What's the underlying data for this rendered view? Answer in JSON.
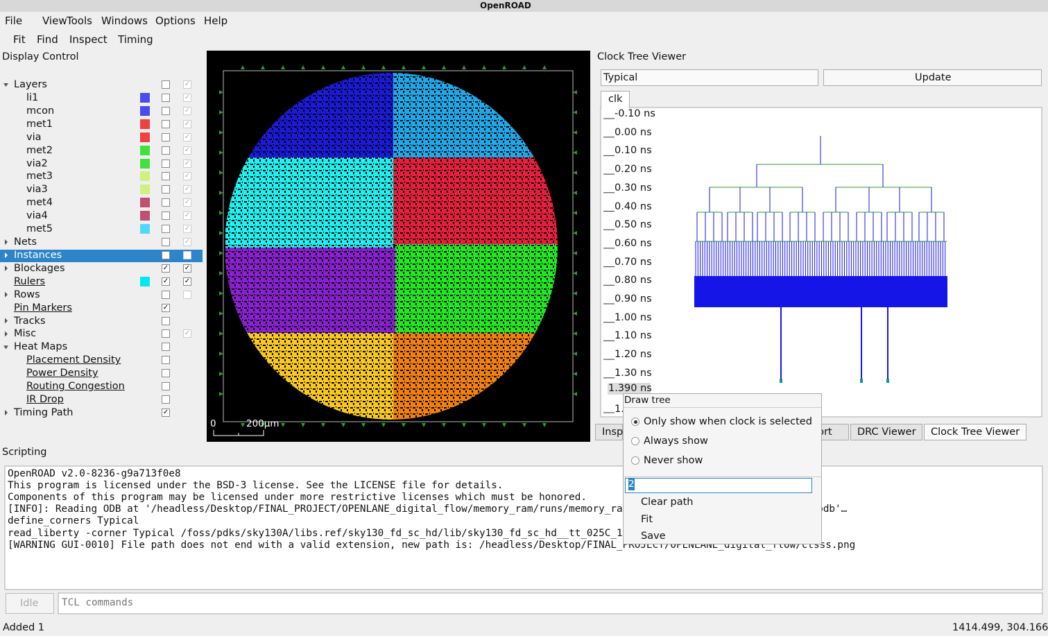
{
  "window": {
    "title": "OpenROAD"
  },
  "menu": [
    "File",
    "View",
    "Tools",
    "Windows",
    "Options",
    "Help"
  ],
  "toolbar": [
    "Fit",
    "Find",
    "Inspect",
    "Timing"
  ],
  "display_control": {
    "title": "Display Control",
    "rows": [
      {
        "label": "Layers",
        "expand": "open",
        "vis": false,
        "sel": true
      },
      {
        "label": "li1",
        "child": true,
        "color": "#4a4af0",
        "vis": false,
        "sel": true
      },
      {
        "label": "mcon",
        "child": true,
        "color": "#4a4af0",
        "vis": false,
        "sel": true
      },
      {
        "label": "met1",
        "child": true,
        "color": "#f04040",
        "vis": false,
        "sel": true
      },
      {
        "label": "via",
        "child": true,
        "color": "#f04040",
        "vis": false,
        "sel": true
      },
      {
        "label": "met2",
        "child": true,
        "color": "#40e040",
        "vis": false,
        "sel": true
      },
      {
        "label": "via2",
        "child": true,
        "color": "#40e040",
        "vis": false,
        "sel": true
      },
      {
        "label": "met3",
        "child": true,
        "color": "#d0f080",
        "vis": false,
        "sel": true
      },
      {
        "label": "via3",
        "child": true,
        "color": "#d0f080",
        "vis": false,
        "sel": true
      },
      {
        "label": "met4",
        "child": true,
        "color": "#c05070",
        "vis": false,
        "sel": true
      },
      {
        "label": "via4",
        "child": true,
        "color": "#c05070",
        "vis": false,
        "sel": true
      },
      {
        "label": "met5",
        "child": true,
        "color": "#50d8f8",
        "vis": false,
        "sel": true
      },
      {
        "label": "Nets",
        "expand": "closed",
        "vis": false,
        "sel": true
      },
      {
        "label": "Instances",
        "expand": "closed",
        "selected": true,
        "vis": false,
        "sel": false
      },
      {
        "label": "Blockages",
        "expand": "closed",
        "vis": true,
        "sel": true
      },
      {
        "label": "Rulers",
        "link": true,
        "color": "#00e8f0",
        "vis": true,
        "sel": true
      },
      {
        "label": "Rows",
        "expand": "closed",
        "vis": false,
        "sel": false
      },
      {
        "label": "Pin Markers",
        "link": true,
        "vis": true
      },
      {
        "label": "Tracks",
        "expand": "closed",
        "vis": false
      },
      {
        "label": "Misc",
        "expand": "closed",
        "vis": false,
        "sel": true
      },
      {
        "label": "Heat Maps",
        "expand": "open",
        "vis": false
      },
      {
        "label": "Placement Density",
        "child": true,
        "link": true,
        "vis": false
      },
      {
        "label": "Power Density",
        "child": true,
        "link": true,
        "vis": false
      },
      {
        "label": "Routing Congestion",
        "child": true,
        "link": true,
        "vis": false
      },
      {
        "label": "IR Drop",
        "child": true,
        "link": true,
        "vis": false
      },
      {
        "label": "Timing Path",
        "expand": "closed",
        "vis": true
      }
    ]
  },
  "layout": {
    "scale_start": "0",
    "scale_label": "200µm"
  },
  "clock_tree": {
    "title": "Clock Tree Viewer",
    "corner": "Typical",
    "update": "Update",
    "tab": "clk",
    "time_labels": [
      "-0.10 ns",
      "0.00 ns",
      "0.10 ns",
      "0.20 ns",
      "0.30 ns",
      "0.40 ns",
      "0.50 ns",
      "0.60 ns",
      "0.70 ns",
      "0.80 ns",
      "0.90 ns",
      "1.00 ns",
      "1.10 ns",
      "1.20 ns",
      "1.30 ns"
    ],
    "marker_label": "1.390 ns",
    "cut_label": "1."
  },
  "context_menu": {
    "title": "Draw tree",
    "options": [
      "Only show when clock is selected",
      "Always show",
      "Never show"
    ],
    "checked": "Only show when clock is selected",
    "spin_value": "2",
    "actions": [
      "Clear path",
      "Fit",
      "Save"
    ]
  },
  "dock_tabs": [
    "Insp",
    "port",
    "DRC Viewer",
    "Clock Tree Viewer"
  ],
  "scripting": {
    "title": "Scripting",
    "lines": [
      "OpenROAD v2.0-8236-g9a713f0e8",
      "This program is licensed under the BSD-3 license. See the LICENSE file for details.",
      "Components of this program may be licensed under more restrictive licenses which must be honored.",
      "[INFO]: Reading ODB at '/headless/Desktop/FINAL_PROJECT/OPENLANE_digital_flow/memory_ram/runs/memory_ra",
      "define_corners Typical",
      "read_liberty -corner Typical /foss/pdks/sky130A/libs.ref/sky130_fd_sc_hd/lib/sky130_fd_sc_hd__tt_025C_1",
      "[WARNING GUI-0010] File path does not end with a valid extension, new path is: /headless/Desktop/FINAL_PROJECT/OPENLANE_digital_flow/ctsss.png"
    ],
    "fragment": "m.odb'…",
    "button": "Idle",
    "placeholder": "TCL commands"
  },
  "status": {
    "message": "Added 1",
    "coordinates": "1414.499, 304.166"
  }
}
